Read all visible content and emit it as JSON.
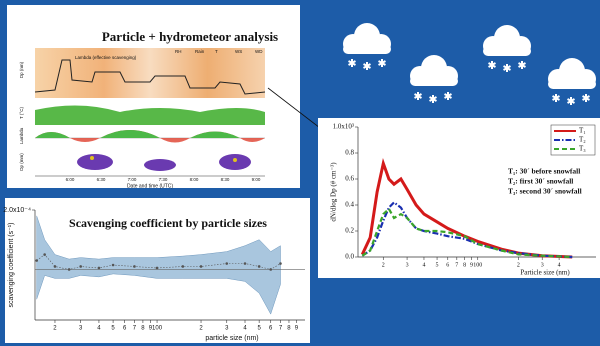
{
  "overview": {
    "title": "Particle + hydrometeor analysis",
    "legend": [
      "RH",
      "Rain",
      "T",
      "WS",
      "WD",
      "Lambda (effective scavenging)"
    ],
    "axis_labels": [
      "Dp (nm)",
      "T (°C)",
      "Lambda",
      "Dp (mm)"
    ],
    "time_ticks": [
      "6:00",
      "6:30",
      "7:00",
      "7:30",
      "8:00",
      "8:30",
      "9:00"
    ],
    "xlabel": "Date and time (UTC)"
  },
  "chart_data": [
    {
      "type": "line",
      "xlabel": "Particle size (nm)",
      "ylabel": "dN/dlog Dp (# cm⁻³)",
      "log_x": true,
      "x": [
        14,
        16,
        18,
        20,
        22,
        24,
        27,
        30,
        35,
        40,
        50,
        60,
        80,
        100,
        150,
        200,
        300,
        500
      ],
      "series": [
        {
          "name": "T₁",
          "color": "#d41a1a",
          "linestyle": "solid",
          "values": [
            0.02,
            0.15,
            0.5,
            0.72,
            0.6,
            0.56,
            0.6,
            0.52,
            0.4,
            0.33,
            0.27,
            0.22,
            0.16,
            0.12,
            0.06,
            0.03,
            0.01,
            0
          ]
        },
        {
          "name": "T₂",
          "color": "#1a2fb0",
          "linestyle": "dashdot",
          "values": [
            0.01,
            0.05,
            0.15,
            0.28,
            0.38,
            0.42,
            0.38,
            0.3,
            0.22,
            0.2,
            0.18,
            0.16,
            0.14,
            0.1,
            0.05,
            0.03,
            0.01,
            0
          ]
        },
        {
          "name": "T₃",
          "color": "#3aa52a",
          "linestyle": "dashed",
          "values": [
            0.01,
            0.05,
            0.2,
            0.33,
            0.37,
            0.3,
            0.33,
            0.3,
            0.22,
            0.2,
            0.2,
            0.19,
            0.16,
            0.1,
            0.05,
            0.02,
            0.01,
            0
          ]
        }
      ],
      "annotations": [
        "T₁: 30´ before snowfall",
        "T₂: first 30´ snowfall",
        "T₃: second 30´ snowfall"
      ],
      "xlim": [
        13,
        750
      ],
      "ylim": [
        0,
        1.0
      ],
      "xticks": [
        {
          "value": 20,
          "label": "2"
        },
        {
          "value": 30,
          "label": "3"
        },
        {
          "value": 40,
          "label": "4"
        },
        {
          "value": 50,
          "label": "5"
        },
        {
          "value": 60,
          "label": "6"
        },
        {
          "value": 70,
          "label": "7"
        },
        {
          "value": 80,
          "label": "8"
        },
        {
          "value": 90,
          "label": "9"
        },
        100,
        {
          "value": 200,
          "label": "2"
        },
        {
          "value": 300,
          "label": "3"
        },
        {
          "value": 400,
          "label": "4"
        }
      ],
      "yticks": [
        {
          "value": 0,
          "label": "0.0"
        },
        0.2,
        0.4,
        0.6,
        0.8,
        {
          "value": 1.0,
          "label": "1.0x10³"
        }
      ],
      "legend_position": "upper right"
    },
    {
      "type": "line",
      "title": "Scavenging coefficient by particle sizes",
      "xlabel": "particle size (nm)",
      "ylabel": "scavenging coefficient (s⁻¹)",
      "log_x": true,
      "x": [
        15,
        17,
        20,
        25,
        30,
        40,
        50,
        70,
        100,
        150,
        200,
        300,
        400,
        500,
        600,
        700
      ],
      "values": [
        0.3,
        0.5,
        0.1,
        0.0,
        0.1,
        0.05,
        0.15,
        0.1,
        0.05,
        0.1,
        0.1,
        0.2,
        0.2,
        0.1,
        0.0,
        0.2
      ],
      "lower": [
        -1.0,
        -0.2,
        -0.3,
        -0.3,
        -0.2,
        -0.25,
        -0.15,
        -0.2,
        -0.3,
        -0.3,
        -0.3,
        -0.3,
        -0.4,
        -0.8,
        -1.5,
        -0.5
      ],
      "upper": [
        1.8,
        1.0,
        0.5,
        0.35,
        0.4,
        0.35,
        0.4,
        0.4,
        0.4,
        0.45,
        0.5,
        0.6,
        0.8,
        1.0,
        0.6,
        0.8
      ],
      "color": "#555555",
      "band_color": "#a9c6de",
      "hline": 0,
      "xlim": [
        14.6,
        1030
      ],
      "ylim": [
        -1.7,
        2.0
      ],
      "xticks": [
        {
          "value": 20,
          "label": "2"
        },
        {
          "value": 30,
          "label": "3"
        },
        {
          "value": 40,
          "label": "4"
        },
        {
          "value": 50,
          "label": "5"
        },
        {
          "value": 60,
          "label": "6"
        },
        {
          "value": 70,
          "label": "7"
        },
        {
          "value": 80,
          "label": "8"
        },
        {
          "value": 90,
          "label": "9"
        },
        100,
        {
          "value": 200,
          "label": "2"
        },
        {
          "value": 300,
          "label": "3"
        },
        {
          "value": 400,
          "label": "4"
        },
        {
          "value": 500,
          "label": "5"
        },
        {
          "value": 600,
          "label": "6"
        },
        {
          "value": 700,
          "label": "7"
        },
        {
          "value": 800,
          "label": "8"
        },
        {
          "value": 900,
          "label": "9"
        }
      ],
      "yticks": [
        {
          "value": 2.0,
          "label": "2.0x10⁻⁴"
        }
      ]
    }
  ]
}
